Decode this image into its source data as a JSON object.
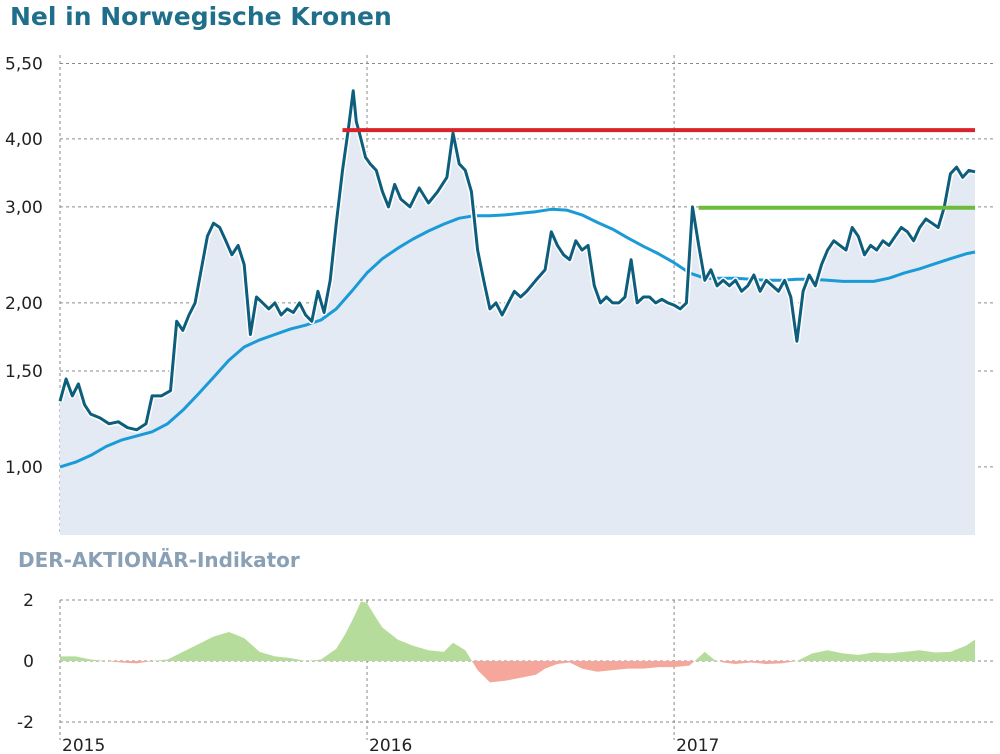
{
  "title": "Nel in Norwegische Kronen",
  "indicator_title": "DER-AKTIONÄR-Indikator",
  "colors": {
    "price_line": "#0d5d7d",
    "price_fill": "#e4eaf3",
    "moving_average": "#1a9ad6",
    "resistance": "#d8232a",
    "support": "#6cbb3c",
    "indicator_positive": "#b5dc9b",
    "indicator_negative": "#f4a79a"
  },
  "chart_data": [
    {
      "type": "line",
      "scale": "log",
      "ylim": [
        0.75,
        5.7
      ],
      "y_ticks": [
        {
          "value": 1.0,
          "label": "1,00"
        },
        {
          "value": 1.5,
          "label": "1,50"
        },
        {
          "value": 2.0,
          "label": "2,00"
        },
        {
          "value": 3.0,
          "label": "3,00"
        },
        {
          "value": 4.0,
          "label": "4,00"
        },
        {
          "value": 5.5,
          "label": "5,50"
        }
      ],
      "xlim": [
        2015.0,
        2017.98
      ],
      "x_ticks": [
        {
          "value": 2015,
          "label": "2015"
        },
        {
          "value": 2016,
          "label": "2016"
        },
        {
          "value": 2017,
          "label": "2017"
        }
      ],
      "series": [
        {
          "kind": "price",
          "x": [
            2015.0,
            2015.02,
            2015.04,
            2015.06,
            2015.08,
            2015.1,
            2015.13,
            2015.16,
            2015.19,
            2015.22,
            2015.25,
            2015.28,
            2015.3,
            2015.33,
            2015.36,
            2015.38,
            2015.4,
            2015.42,
            2015.44,
            2015.46,
            2015.48,
            2015.5,
            2015.52,
            2015.54,
            2015.56,
            2015.58,
            2015.6,
            2015.62,
            2015.64,
            2015.66,
            2015.68,
            2015.7,
            2015.72,
            2015.74,
            2015.76,
            2015.78,
            2015.8,
            2015.82,
            2015.84,
            2015.86,
            2015.88,
            2015.9,
            2015.92,
            2015.94,
            2015.955,
            2015.965,
            2015.975,
            2015.985,
            2015.995,
            2016.01,
            2016.03,
            2016.05,
            2016.07,
            2016.09,
            2016.11,
            2016.14,
            2016.17,
            2016.2,
            2016.23,
            2016.26,
            2016.28,
            2016.3,
            2016.32,
            2016.34,
            2016.36,
            2016.38,
            2016.4,
            2016.42,
            2016.44,
            2016.46,
            2016.48,
            2016.5,
            2016.52,
            2016.55,
            2016.58,
            2016.6,
            2016.62,
            2016.64,
            2016.66,
            2016.68,
            2016.7,
            2016.72,
            2016.74,
            2016.76,
            2016.78,
            2016.8,
            2016.82,
            2016.84,
            2016.86,
            2016.88,
            2016.9,
            2016.92,
            2016.94,
            2016.96,
            2016.98,
            2017.0,
            2017.02,
            2017.04,
            2017.06,
            2017.08,
            2017.1,
            2017.12,
            2017.14,
            2017.16,
            2017.18,
            2017.2,
            2017.22,
            2017.24,
            2017.26,
            2017.28,
            2017.3,
            2017.32,
            2017.34,
            2017.36,
            2017.38,
            2017.4,
            2017.42,
            2017.44,
            2017.46,
            2017.48,
            2017.5,
            2017.52,
            2017.54,
            2017.56,
            2017.58,
            2017.6,
            2017.62,
            2017.64,
            2017.66,
            2017.68,
            2017.7,
            2017.72,
            2017.74,
            2017.76,
            2017.78,
            2017.8,
            2017.82,
            2017.84,
            2017.86,
            2017.88,
            2017.9,
            2017.92,
            2017.94,
            2017.96,
            2017.98
          ],
          "y": [
            1.32,
            1.45,
            1.35,
            1.42,
            1.3,
            1.25,
            1.23,
            1.2,
            1.21,
            1.18,
            1.17,
            1.2,
            1.35,
            1.35,
            1.38,
            1.85,
            1.78,
            1.9,
            2.0,
            2.3,
            2.65,
            2.8,
            2.75,
            2.6,
            2.45,
            2.55,
            2.35,
            1.75,
            2.05,
            2.0,
            1.95,
            2.0,
            1.9,
            1.95,
            1.92,
            2.0,
            1.9,
            1.85,
            2.1,
            1.92,
            2.2,
            2.8,
            3.5,
            4.2,
            4.9,
            4.3,
            4.1,
            3.9,
            3.7,
            3.6,
            3.5,
            3.2,
            3.0,
            3.3,
            3.1,
            3.0,
            3.25,
            3.05,
            3.2,
            3.4,
            4.1,
            3.6,
            3.5,
            3.2,
            2.5,
            2.2,
            1.95,
            2.0,
            1.9,
            2.0,
            2.1,
            2.05,
            2.1,
            2.2,
            2.3,
            2.7,
            2.55,
            2.45,
            2.4,
            2.6,
            2.5,
            2.55,
            2.15,
            2.0,
            2.05,
            2.0,
            2.0,
            2.05,
            2.4,
            2.0,
            2.05,
            2.05,
            2.0,
            2.03,
            2.0,
            1.98,
            1.95,
            2.0,
            3.0,
            2.55,
            2.2,
            2.3,
            2.15,
            2.2,
            2.15,
            2.2,
            2.1,
            2.15,
            2.25,
            2.1,
            2.2,
            2.15,
            2.1,
            2.2,
            2.05,
            1.7,
            2.1,
            2.25,
            2.15,
            2.35,
            2.5,
            2.6,
            2.55,
            2.5,
            2.75,
            2.65,
            2.45,
            2.55,
            2.5,
            2.6,
            2.55,
            2.65,
            2.75,
            2.7,
            2.6,
            2.75,
            2.85,
            2.8,
            2.75,
            3.0,
            3.45,
            3.55,
            3.4,
            3.5,
            3.48
          ]
        },
        {
          "kind": "moving_average",
          "x": [
            2015.0,
            2015.05,
            2015.1,
            2015.15,
            2015.2,
            2015.25,
            2015.3,
            2015.35,
            2015.4,
            2015.45,
            2015.5,
            2015.55,
            2015.6,
            2015.65,
            2015.7,
            2015.75,
            2015.8,
            2015.85,
            2015.9,
            2015.95,
            2016.0,
            2016.05,
            2016.1,
            2016.15,
            2016.2,
            2016.25,
            2016.3,
            2016.35,
            2016.4,
            2016.45,
            2016.5,
            2016.55,
            2016.6,
            2016.65,
            2016.7,
            2016.75,
            2016.8,
            2016.85,
            2016.9,
            2016.95,
            2017.0,
            2017.05,
            2017.1,
            2017.15,
            2017.2,
            2017.25,
            2017.3,
            2017.35,
            2017.4,
            2017.45,
            2017.5,
            2017.55,
            2017.6,
            2017.65,
            2017.7,
            2017.75,
            2017.8,
            2017.85,
            2017.9,
            2017.95,
            2017.98
          ],
          "y": [
            1.0,
            1.02,
            1.05,
            1.09,
            1.12,
            1.14,
            1.16,
            1.2,
            1.27,
            1.36,
            1.46,
            1.57,
            1.66,
            1.71,
            1.75,
            1.79,
            1.82,
            1.86,
            1.95,
            2.1,
            2.27,
            2.41,
            2.52,
            2.62,
            2.71,
            2.79,
            2.86,
            2.89,
            2.89,
            2.9,
            2.92,
            2.94,
            2.97,
            2.96,
            2.9,
            2.81,
            2.73,
            2.63,
            2.54,
            2.46,
            2.37,
            2.27,
            2.22,
            2.22,
            2.22,
            2.21,
            2.2,
            2.2,
            2.21,
            2.21,
            2.2,
            2.19,
            2.19,
            2.19,
            2.22,
            2.27,
            2.31,
            2.36,
            2.41,
            2.46,
            2.48
          ]
        },
        {
          "kind": "resistance",
          "x": [
            2015.92,
            2017.98
          ],
          "y": [
            4.15,
            4.15
          ]
        },
        {
          "kind": "support",
          "x": [
            2017.08,
            2017.98
          ],
          "y": [
            2.99,
            2.99
          ]
        }
      ]
    },
    {
      "type": "area",
      "ylim": [
        -2,
        2
      ],
      "y_ticks": [
        {
          "value": 2,
          "label": "2"
        },
        {
          "value": 0,
          "label": "0"
        },
        {
          "value": -2,
          "label": "-2"
        }
      ],
      "xlim": [
        2015.0,
        2017.98
      ],
      "x_ticks": [
        {
          "value": 2015,
          "label": "2015"
        },
        {
          "value": 2016,
          "label": "2016"
        },
        {
          "value": 2017,
          "label": "2017"
        }
      ],
      "series": [
        {
          "kind": "indicator",
          "x": [
            2015.0,
            2015.05,
            2015.1,
            2015.15,
            2015.2,
            2015.25,
            2015.3,
            2015.35,
            2015.4,
            2015.45,
            2015.5,
            2015.55,
            2015.6,
            2015.65,
            2015.7,
            2015.75,
            2015.8,
            2015.85,
            2015.9,
            2015.93,
            2015.96,
            2015.98,
            2016.0,
            2016.03,
            2016.05,
            2016.1,
            2016.15,
            2016.2,
            2016.25,
            2016.28,
            2016.32,
            2016.36,
            2016.4,
            2016.45,
            2016.5,
            2016.55,
            2016.58,
            2016.62,
            2016.66,
            2016.7,
            2016.75,
            2016.8,
            2016.85,
            2016.9,
            2016.95,
            2017.0,
            2017.05,
            2017.1,
            2017.13,
            2017.16,
            2017.2,
            2017.25,
            2017.3,
            2017.35,
            2017.4,
            2017.45,
            2017.5,
            2017.55,
            2017.6,
            2017.65,
            2017.7,
            2017.75,
            2017.8,
            2017.85,
            2017.9,
            2017.95,
            2017.98
          ],
          "y": [
            0.15,
            0.15,
            0.05,
            0.0,
            -0.05,
            -0.08,
            0.0,
            0.05,
            0.3,
            0.55,
            0.8,
            0.95,
            0.75,
            0.3,
            0.15,
            0.1,
            0.0,
            0.05,
            0.4,
            0.9,
            1.5,
            1.95,
            1.9,
            1.4,
            1.1,
            0.7,
            0.5,
            0.35,
            0.3,
            0.6,
            0.35,
            -0.3,
            -0.7,
            -0.65,
            -0.55,
            -0.45,
            -0.25,
            -0.1,
            -0.05,
            -0.25,
            -0.35,
            -0.3,
            -0.25,
            -0.25,
            -0.2,
            -0.2,
            -0.15,
            0.3,
            0.05,
            -0.05,
            -0.1,
            -0.05,
            -0.1,
            -0.08,
            0.0,
            0.25,
            0.35,
            0.25,
            0.2,
            0.28,
            0.25,
            0.3,
            0.35,
            0.28,
            0.3,
            0.5,
            0.7
          ]
        }
      ]
    }
  ]
}
